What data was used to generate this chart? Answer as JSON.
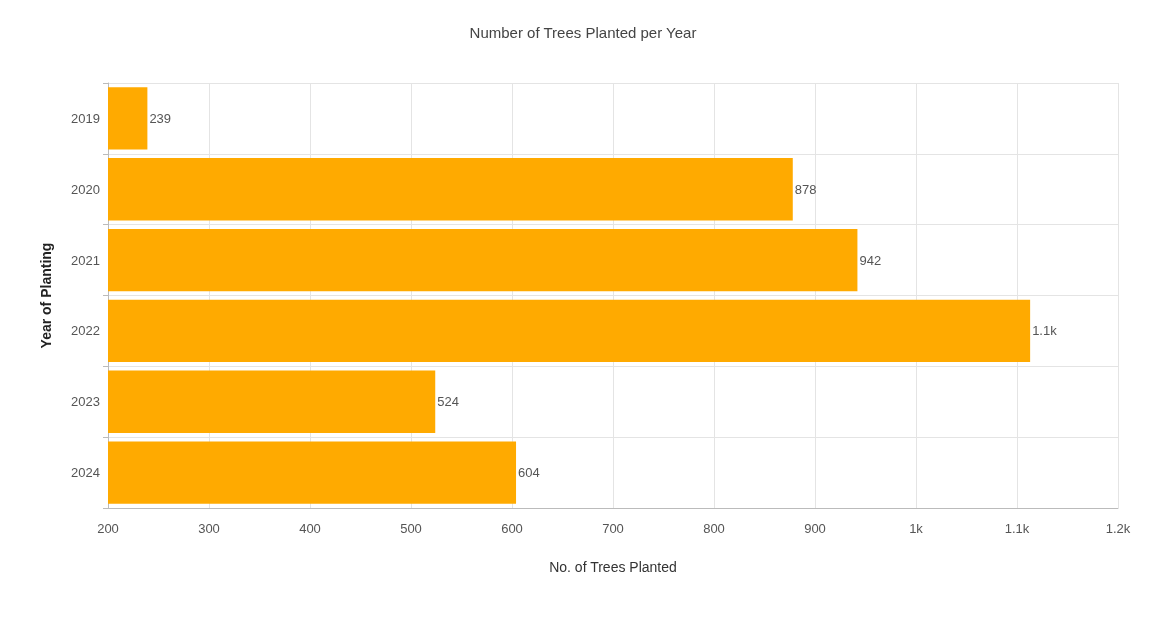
{
  "chart_data": {
    "type": "bar",
    "orientation": "horizontal",
    "title": "Number of Trees Planted per Year",
    "xlabel": "No. of Trees Planted",
    "ylabel": "Year of Planting",
    "categories": [
      "2019",
      "2020",
      "2021",
      "2022",
      "2023",
      "2024"
    ],
    "values": [
      239,
      878,
      942,
      1113,
      524,
      604
    ],
    "value_labels": [
      "239",
      "878",
      "942",
      "1.1k",
      "524",
      "604"
    ],
    "color": "#ffaa00",
    "xlim": [
      200,
      1200
    ],
    "xticks": [
      200,
      300,
      400,
      500,
      600,
      700,
      800,
      900,
      {
        "value": 1000,
        "label": "1k"
      },
      {
        "value": 1100,
        "label": "1.1k"
      },
      {
        "value": 1200,
        "label": "1.2k"
      }
    ],
    "grid": true
  }
}
